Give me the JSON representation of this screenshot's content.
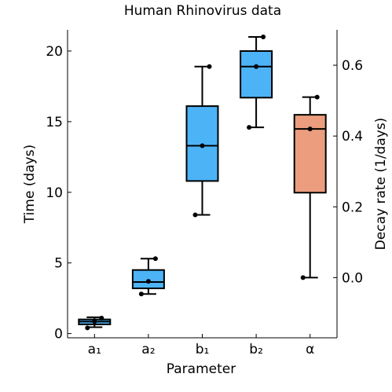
{
  "chart_data": {
    "type": "box",
    "title": "Human Rhinovirus data",
    "xlabel": "Parameter",
    "ylabel_left": "Time (days)",
    "ylabel_right": "Decay rate (1/days)",
    "categories": [
      "a₁",
      "a₂",
      "b₁",
      "b₂",
      "α"
    ],
    "ylim_left": [
      -0.3,
      21.5
    ],
    "ylim_right": [
      -0.17,
      0.7
    ],
    "yticks_left": [
      "0",
      "5",
      "10",
      "15",
      "20"
    ],
    "yticks_left_values": [
      0,
      5,
      10,
      15,
      20
    ],
    "yticks_right": [
      "0.0",
      "0.2",
      "0.4",
      "0.6"
    ],
    "yticks_right_values": [
      0.0,
      0.2,
      0.4,
      0.6
    ],
    "grid": false,
    "series": [
      {
        "category": "a₁",
        "axis": "left",
        "color": "#4db3f7",
        "whisker_low": 0.45,
        "q1": 0.65,
        "median": 0.85,
        "q3": 1.0,
        "whisker_high": 1.15,
        "points": [
          0.4,
          0.85,
          1.1
        ]
      },
      {
        "category": "a₂",
        "axis": "left",
        "color": "#4db3f7",
        "whisker_low": 2.8,
        "q1": 3.2,
        "median": 3.65,
        "q3": 4.5,
        "whisker_high": 5.3,
        "points": [
          2.8,
          3.7,
          5.3
        ]
      },
      {
        "category": "b₁",
        "axis": "left",
        "color": "#4db3f7",
        "whisker_low": 8.4,
        "q1": 10.8,
        "median": 13.3,
        "q3": 16.1,
        "whisker_high": 18.9,
        "points": [
          8.4,
          13.3,
          18.9
        ]
      },
      {
        "category": "b₂",
        "axis": "left",
        "color": "#4db3f7",
        "whisker_low": 14.6,
        "q1": 16.7,
        "median": 18.9,
        "q3": 20.0,
        "whisker_high": 21.0,
        "points": [
          14.6,
          18.9,
          21.0
        ]
      },
      {
        "category": "α",
        "axis": "right",
        "color": "#eb9d7d",
        "whisker_low": 0.0,
        "q1": 0.24,
        "median": 0.42,
        "q3": 0.46,
        "whisker_high": 0.51,
        "points": [
          0.0,
          0.42,
          0.51
        ]
      }
    ]
  }
}
